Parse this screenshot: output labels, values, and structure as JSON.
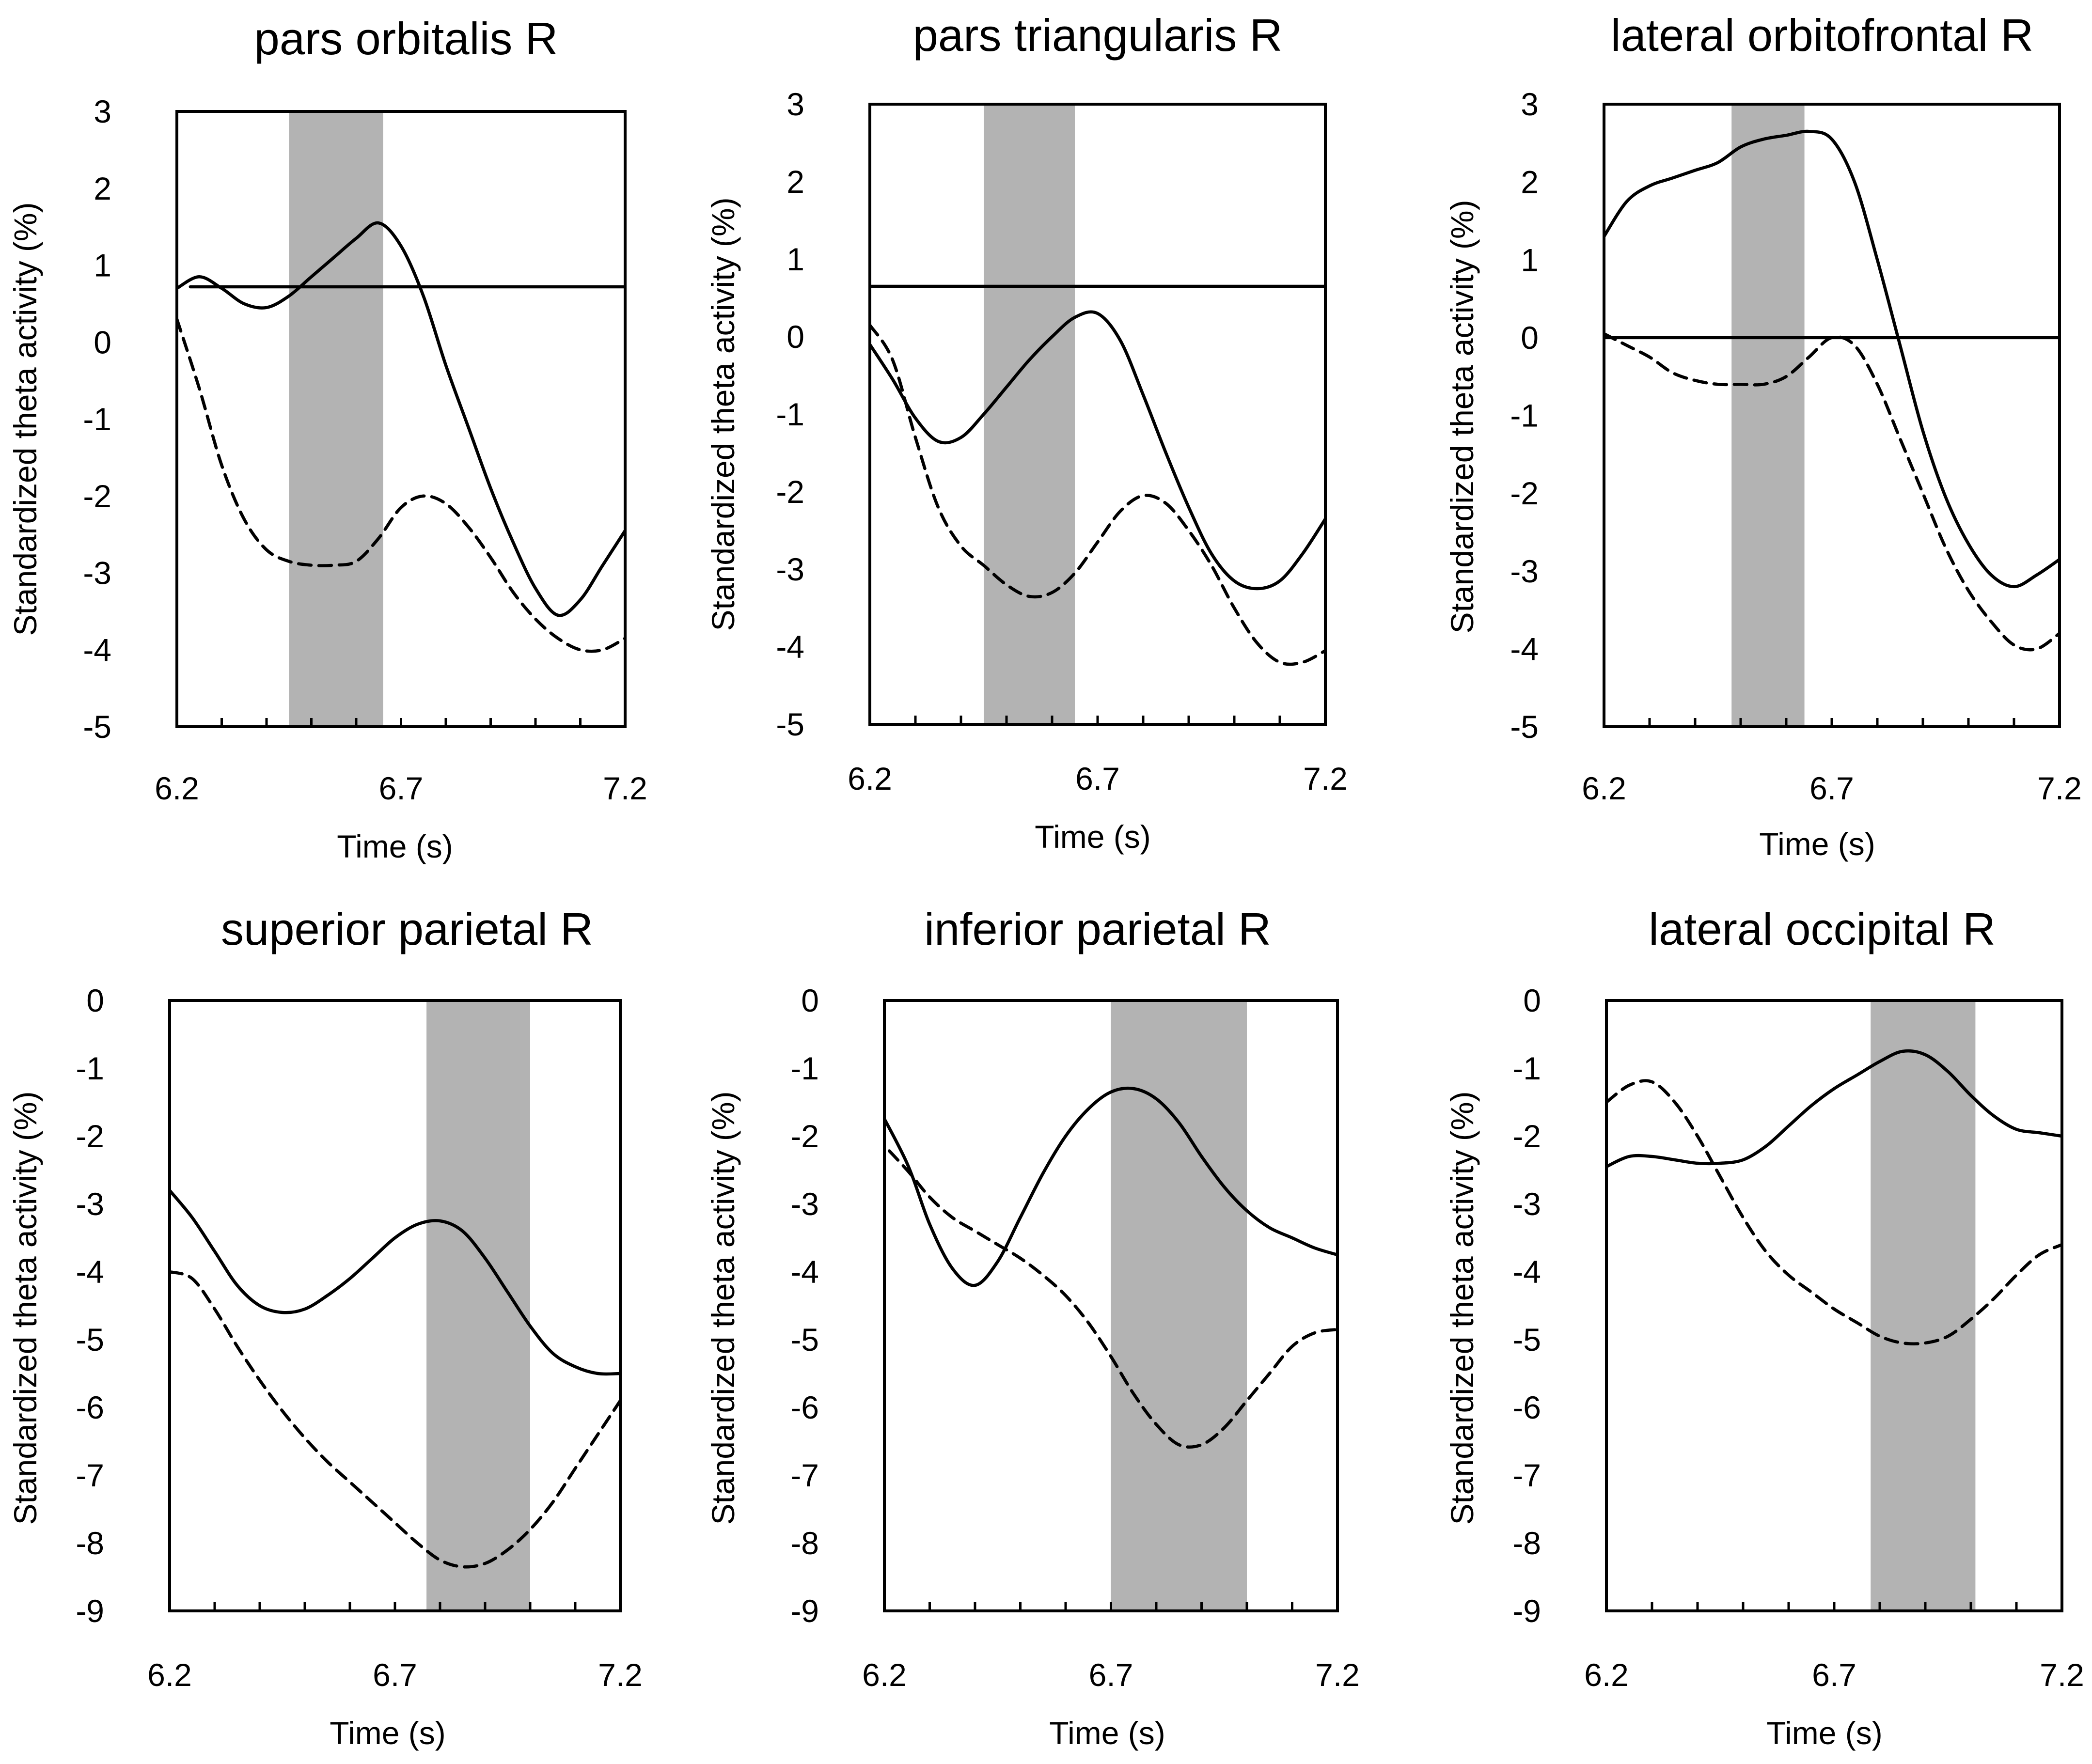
{
  "colors": {
    "background": "#ffffff",
    "ink": "#000000",
    "highlight": "#b3b3b3"
  },
  "chart_data": [
    {
      "type": "line",
      "title": "pars orbitalis R",
      "xlabel": "Time (s)",
      "ylabel": "Standardized theta activity (%)",
      "xlim": [
        6.2,
        7.2
      ],
      "ylim": [
        -5,
        3
      ],
      "xticks": [
        "6.2",
        "6.7",
        "7.2"
      ],
      "yticks": [
        "3",
        "2",
        "1",
        "0",
        "-1",
        "-2",
        "-3",
        "-4",
        "-5"
      ],
      "shaded_region": [
        6.45,
        6.66
      ],
      "series": [
        {
          "name": "solid",
          "style": "solid",
          "x": [
            6.2,
            6.25,
            6.3,
            6.35,
            6.4,
            6.45,
            6.5,
            6.55,
            6.6,
            6.65,
            6.7,
            6.75,
            6.8,
            6.85,
            6.9,
            6.95,
            7.0,
            7.05,
            7.1,
            7.15,
            7.2
          ],
          "y": [
            0.7,
            0.85,
            0.7,
            0.5,
            0.45,
            0.6,
            0.85,
            1.1,
            1.35,
            1.55,
            1.25,
            0.6,
            -0.3,
            -1.1,
            -1.9,
            -2.6,
            -3.2,
            -3.55,
            -3.35,
            -2.9,
            -2.45
          ]
        },
        {
          "name": "dashed",
          "style": "dashed",
          "x": [
            6.2,
            6.25,
            6.3,
            6.35,
            6.4,
            6.45,
            6.5,
            6.55,
            6.6,
            6.65,
            6.7,
            6.75,
            6.8,
            6.85,
            6.9,
            6.95,
            7.0,
            7.05,
            7.1,
            7.15,
            7.2
          ],
          "y": [
            0.3,
            -0.6,
            -1.6,
            -2.3,
            -2.7,
            -2.85,
            -2.9,
            -2.9,
            -2.85,
            -2.55,
            -2.15,
            -2.0,
            -2.1,
            -2.4,
            -2.8,
            -3.25,
            -3.6,
            -3.85,
            -4.0,
            -4.0,
            -3.85
          ]
        },
        {
          "name": "threshold",
          "style": "solid",
          "x": [
            6.23,
            7.2
          ],
          "y": [
            0.72,
            0.72
          ]
        }
      ]
    },
    {
      "type": "line",
      "title": "pars triangularis R",
      "xlabel": "Time (s)",
      "ylabel": "Standardized theta activity (%)",
      "xlim": [
        6.2,
        7.2
      ],
      "ylim": [
        -5,
        3
      ],
      "xticks": [
        "6.2",
        "6.7",
        "7.2"
      ],
      "yticks": [
        "3",
        "2",
        "1",
        "0",
        "-1",
        "-2",
        "-3",
        "-4",
        "-5"
      ],
      "shaded_region": [
        6.45,
        6.65
      ],
      "series": [
        {
          "name": "solid",
          "style": "solid",
          "x": [
            6.2,
            6.25,
            6.3,
            6.35,
            6.4,
            6.45,
            6.5,
            6.55,
            6.6,
            6.65,
            6.7,
            6.75,
            6.8,
            6.85,
            6.9,
            6.95,
            7.0,
            7.05,
            7.1,
            7.15,
            7.2
          ],
          "y": [
            -0.1,
            -0.55,
            -1.05,
            -1.35,
            -1.3,
            -1.0,
            -0.65,
            -0.3,
            0.0,
            0.25,
            0.3,
            -0.05,
            -0.75,
            -1.5,
            -2.2,
            -2.8,
            -3.15,
            -3.25,
            -3.15,
            -2.8,
            -2.35
          ]
        },
        {
          "name": "dashed",
          "style": "dashed",
          "x": [
            6.2,
            6.25,
            6.3,
            6.35,
            6.4,
            6.45,
            6.5,
            6.55,
            6.6,
            6.65,
            6.7,
            6.75,
            6.8,
            6.85,
            6.9,
            6.95,
            7.0,
            7.05,
            7.1,
            7.15,
            7.2
          ],
          "y": [
            0.15,
            -0.3,
            -1.3,
            -2.2,
            -2.7,
            -2.95,
            -3.2,
            -3.35,
            -3.3,
            -3.05,
            -2.65,
            -2.25,
            -2.05,
            -2.15,
            -2.5,
            -2.95,
            -3.5,
            -3.95,
            -4.2,
            -4.2,
            -4.05
          ]
        },
        {
          "name": "threshold",
          "style": "solid",
          "x": [
            6.2,
            7.2
          ],
          "y": [
            0.65,
            0.65
          ]
        }
      ]
    },
    {
      "type": "line",
      "title": "lateral orbitofrontal R",
      "xlabel": "Time (s)",
      "ylabel": "Standardized theta activity (%)",
      "xlim": [
        6.2,
        7.2
      ],
      "ylim": [
        -5,
        3
      ],
      "xticks": [
        "6.2",
        "6.7",
        "7.2"
      ],
      "yticks": [
        "3",
        "2",
        "1",
        "0",
        "-1",
        "-2",
        "-3",
        "-4",
        "-5"
      ],
      "shaded_region": [
        6.48,
        6.64
      ],
      "series": [
        {
          "name": "solid",
          "style": "solid",
          "x": [
            6.2,
            6.25,
            6.3,
            6.35,
            6.4,
            6.45,
            6.5,
            6.55,
            6.6,
            6.65,
            6.7,
            6.75,
            6.8,
            6.85,
            6.9,
            6.95,
            7.0,
            7.05,
            7.1,
            7.15,
            7.2
          ],
          "y": [
            1.3,
            1.75,
            1.95,
            2.05,
            2.15,
            2.25,
            2.45,
            2.55,
            2.6,
            2.65,
            2.55,
            2.0,
            1.0,
            -0.1,
            -1.2,
            -2.05,
            -2.65,
            -3.05,
            -3.2,
            -3.05,
            -2.85
          ]
        },
        {
          "name": "dashed",
          "style": "dashed",
          "x": [
            6.2,
            6.25,
            6.3,
            6.35,
            6.4,
            6.45,
            6.5,
            6.55,
            6.6,
            6.65,
            6.7,
            6.75,
            6.8,
            6.85,
            6.9,
            6.95,
            7.0,
            7.05,
            7.1,
            7.15,
            7.2
          ],
          "y": [
            0.05,
            -0.1,
            -0.25,
            -0.45,
            -0.55,
            -0.6,
            -0.6,
            -0.6,
            -0.5,
            -0.25,
            0.0,
            -0.1,
            -0.6,
            -1.3,
            -2.0,
            -2.7,
            -3.25,
            -3.65,
            -3.95,
            -4.0,
            -3.8
          ]
        },
        {
          "name": "threshold",
          "style": "solid",
          "x": [
            6.2,
            7.2
          ],
          "y": [
            0.0,
            0.0
          ]
        }
      ]
    },
    {
      "type": "line",
      "title": "superior parietal R",
      "xlabel": "Time (s)",
      "ylabel": "Standardized theta activity (%)",
      "xlim": [
        6.2,
        7.2
      ],
      "ylim": [
        -9,
        0
      ],
      "xticks": [
        "6.2",
        "6.7",
        "7.2"
      ],
      "yticks": [
        "0",
        "-1",
        "-2",
        "-3",
        "-4",
        "-5",
        "-6",
        "-7",
        "-8",
        "-9"
      ],
      "shaded_region": [
        6.77,
        7.0
      ],
      "series": [
        {
          "name": "solid",
          "style": "solid",
          "x": [
            6.2,
            6.25,
            6.3,
            6.35,
            6.4,
            6.45,
            6.5,
            6.55,
            6.6,
            6.65,
            6.7,
            6.75,
            6.8,
            6.85,
            6.9,
            6.95,
            7.0,
            7.05,
            7.1,
            7.15,
            7.2
          ],
          "y": [
            -2.8,
            -3.2,
            -3.7,
            -4.2,
            -4.5,
            -4.6,
            -4.55,
            -4.35,
            -4.1,
            -3.8,
            -3.5,
            -3.3,
            -3.25,
            -3.4,
            -3.8,
            -4.3,
            -4.8,
            -5.2,
            -5.4,
            -5.5,
            -5.5
          ]
        },
        {
          "name": "dashed",
          "style": "dashed",
          "x": [
            6.2,
            6.25,
            6.3,
            6.35,
            6.4,
            6.45,
            6.5,
            6.55,
            6.6,
            6.65,
            6.7,
            6.75,
            6.8,
            6.85,
            6.9,
            6.95,
            7.0,
            7.05,
            7.1,
            7.15,
            7.2
          ],
          "y": [
            -4.0,
            -4.1,
            -4.55,
            -5.1,
            -5.6,
            -6.05,
            -6.45,
            -6.8,
            -7.1,
            -7.4,
            -7.7,
            -8.0,
            -8.25,
            -8.35,
            -8.3,
            -8.1,
            -7.8,
            -7.4,
            -6.9,
            -6.4,
            -5.9
          ]
        }
      ]
    },
    {
      "type": "line",
      "title": "inferior parietal R",
      "xlabel": "Time (s)",
      "ylabel": "Standardized theta activity (%)",
      "xlim": [
        6.2,
        7.2
      ],
      "ylim": [
        -9,
        0
      ],
      "xticks": [
        "6.2",
        "6.7",
        "7.2"
      ],
      "yticks": [
        "0",
        "-1",
        "-2",
        "-3",
        "-4",
        "-5",
        "-6",
        "-7",
        "-8",
        "-9"
      ],
      "shaded_region": [
        6.7,
        7.0
      ],
      "series": [
        {
          "name": "solid",
          "style": "solid",
          "x": [
            6.18,
            6.25,
            6.3,
            6.35,
            6.4,
            6.45,
            6.5,
            6.55,
            6.6,
            6.65,
            6.7,
            6.75,
            6.8,
            6.85,
            6.9,
            6.95,
            7.0,
            7.05,
            7.1,
            7.15,
            7.2
          ],
          "y": [
            -1.5,
            -2.4,
            -3.3,
            -3.95,
            -4.2,
            -3.85,
            -3.2,
            -2.55,
            -2.0,
            -1.6,
            -1.35,
            -1.3,
            -1.45,
            -1.8,
            -2.3,
            -2.75,
            -3.1,
            -3.35,
            -3.5,
            -3.65,
            -3.75
          ]
        },
        {
          "name": "dashed",
          "style": "dashed",
          "x": [
            6.18,
            6.25,
            6.3,
            6.35,
            6.4,
            6.45,
            6.5,
            6.55,
            6.6,
            6.65,
            6.7,
            6.75,
            6.8,
            6.85,
            6.9,
            6.95,
            7.0,
            7.05,
            7.1,
            7.15,
            7.2
          ],
          "y": [
            -2.0,
            -2.5,
            -2.9,
            -3.2,
            -3.4,
            -3.6,
            -3.8,
            -4.05,
            -4.35,
            -4.75,
            -5.25,
            -5.8,
            -6.25,
            -6.55,
            -6.55,
            -6.3,
            -5.9,
            -5.5,
            -5.1,
            -4.9,
            -4.85
          ]
        }
      ]
    },
    {
      "type": "line",
      "title": "lateral occipital R",
      "xlabel": "Time (s)",
      "ylabel": "Standardized theta activity (%)",
      "xlim": [
        6.2,
        7.2
      ],
      "ylim": [
        -9,
        0
      ],
      "xticks": [
        "6.2",
        "6.7",
        "7.2"
      ],
      "yticks": [
        "0",
        "-1",
        "-2",
        "-3",
        "-4",
        "-5",
        "-6",
        "-7",
        "-8",
        "-9"
      ],
      "shaded_region": [
        6.78,
        7.01
      ],
      "series": [
        {
          "name": "solid",
          "style": "solid",
          "x": [
            6.2,
            6.25,
            6.3,
            6.35,
            6.4,
            6.45,
            6.5,
            6.55,
            6.6,
            6.65,
            6.7,
            6.75,
            6.8,
            6.85,
            6.9,
            6.95,
            7.0,
            7.05,
            7.1,
            7.15,
            7.2
          ],
          "y": [
            -2.45,
            -2.3,
            -2.3,
            -2.35,
            -2.4,
            -2.4,
            -2.35,
            -2.15,
            -1.85,
            -1.55,
            -1.3,
            -1.1,
            -0.9,
            -0.75,
            -0.8,
            -1.05,
            -1.4,
            -1.7,
            -1.9,
            -1.95,
            -2.0
          ]
        },
        {
          "name": "dashed",
          "style": "dashed",
          "x": [
            6.2,
            6.25,
            6.3,
            6.35,
            6.4,
            6.45,
            6.5,
            6.55,
            6.6,
            6.65,
            6.7,
            6.75,
            6.8,
            6.85,
            6.9,
            6.95,
            7.0,
            7.05,
            7.1,
            7.15,
            7.2
          ],
          "y": [
            -1.5,
            -1.25,
            -1.2,
            -1.5,
            -2.0,
            -2.6,
            -3.2,
            -3.7,
            -4.05,
            -4.3,
            -4.55,
            -4.75,
            -4.95,
            -5.05,
            -5.05,
            -4.95,
            -4.7,
            -4.4,
            -4.05,
            -3.75,
            -3.6
          ]
        }
      ]
    }
  ]
}
